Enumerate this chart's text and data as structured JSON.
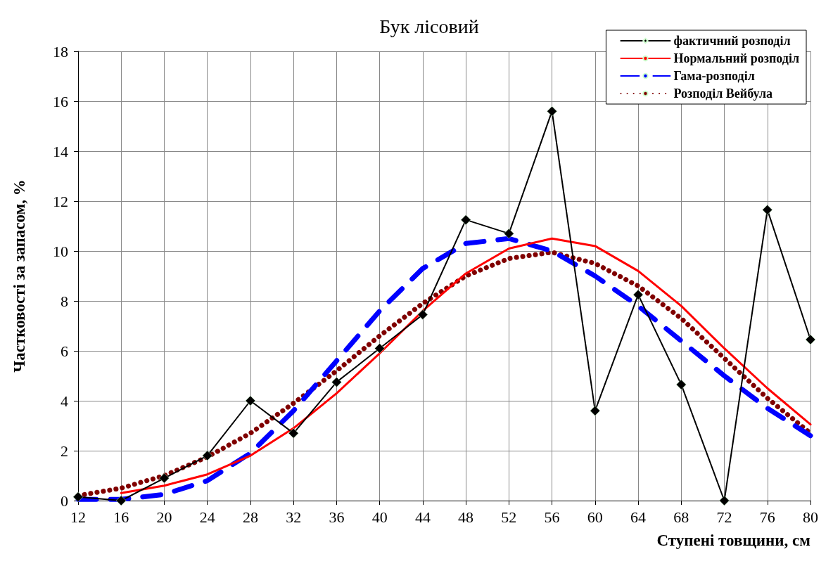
{
  "chart_data": {
    "type": "line",
    "title": "Бук лісовий",
    "xlabel": "Ступені товщини, см",
    "ylabel": "Частковості за запасом, %",
    "x": [
      12,
      16,
      20,
      24,
      28,
      32,
      36,
      40,
      44,
      48,
      52,
      56,
      60,
      64,
      68,
      72,
      76,
      80
    ],
    "series": [
      {
        "name": "фактичний розподіл",
        "color": "#000000",
        "marker": "diamond",
        "line_style": "solid",
        "values": [
          0.15,
          0,
          0.9,
          1.8,
          4.0,
          2.7,
          4.75,
          6.1,
          7.45,
          11.25,
          10.7,
          15.6,
          3.6,
          8.25,
          4.65,
          0,
          11.65,
          6.45
        ]
      },
      {
        "name": "Нормальний розподіл",
        "color": "#ff0000",
        "marker": "none",
        "line_style": "solid",
        "values": [
          null,
          0.3,
          0.6,
          1.05,
          1.8,
          2.9,
          4.3,
          5.9,
          7.6,
          9.1,
          10.1,
          10.5,
          10.2,
          9.2,
          7.8,
          6.1,
          4.5,
          3.05
        ]
      },
      {
        "name": "Гама-розподіл",
        "color": "#0000ff",
        "marker": "none",
        "line_style": "dashed",
        "values": [
          0.05,
          0.05,
          0.25,
          0.8,
          1.9,
          3.6,
          5.6,
          7.6,
          9.3,
          10.3,
          10.5,
          10.0,
          9.0,
          7.8,
          6.4,
          5.0,
          3.7,
          2.6
        ]
      },
      {
        "name": "Розподіл Вейбула",
        "color": "#800000",
        "marker": "none",
        "line_style": "dotted",
        "values": [
          0.2,
          0.5,
          1.0,
          1.75,
          2.7,
          3.9,
          5.2,
          6.6,
          7.9,
          9.0,
          9.7,
          9.95,
          9.5,
          8.6,
          7.3,
          5.7,
          4.1,
          2.7
        ]
      }
    ],
    "xlim": [
      12,
      80
    ],
    "xticks": [
      12,
      16,
      20,
      24,
      28,
      32,
      36,
      40,
      44,
      48,
      52,
      56,
      60,
      64,
      68,
      72,
      76,
      80
    ],
    "ylim": [
      0,
      18
    ],
    "yticks": [
      0,
      2,
      4,
      6,
      8,
      10,
      12,
      14,
      16,
      18
    ],
    "grid": true,
    "legend": "top right"
  }
}
